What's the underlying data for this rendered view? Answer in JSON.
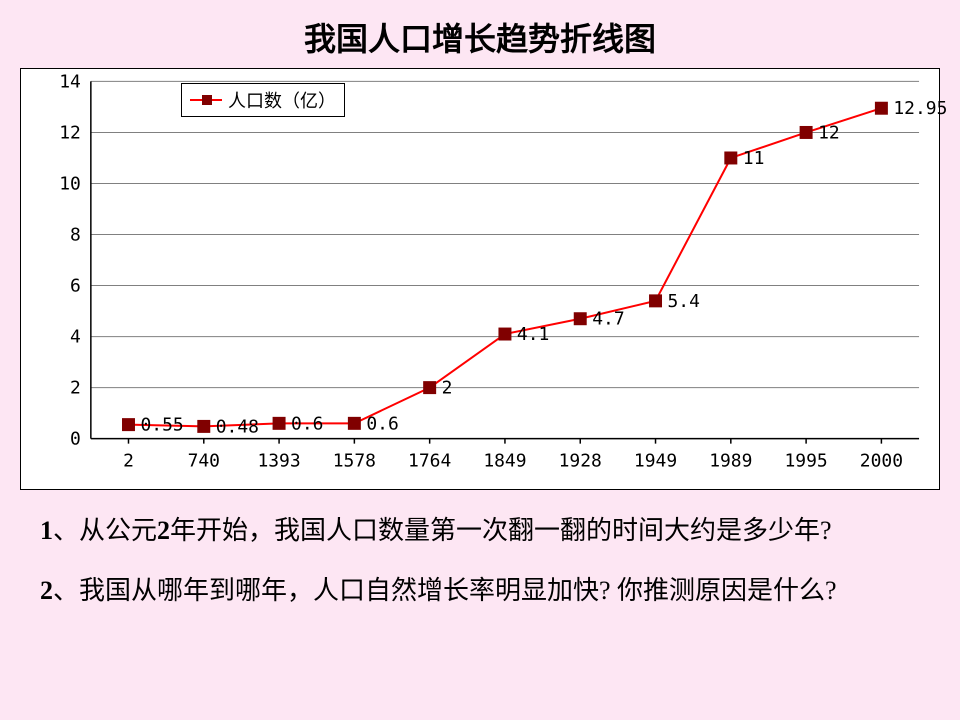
{
  "title": "我国人口增长趋势折线图",
  "chart": {
    "type": "line",
    "legend_label": "人口数（亿）",
    "x_categories": [
      "2",
      "740",
      "1393",
      "1578",
      "1764",
      "1849",
      "1928",
      "1949",
      "1989",
      "1995",
      "2000"
    ],
    "values": [
      0.55,
      0.48,
      0.6,
      0.6,
      2,
      4.1,
      4.7,
      5.4,
      11,
      12,
      12.95
    ],
    "value_labels": [
      "0.55",
      "0.48",
      "0.6",
      "0.6",
      "2",
      "4.1",
      "4.7",
      "5.4",
      "11",
      "12",
      "12.95"
    ],
    "ylim": [
      0,
      14
    ],
    "ytick_step": 2,
    "line_color": "#ff0000",
    "marker_color": "#800000",
    "marker_shape": "square",
    "marker_size": 12,
    "grid_color": "#808080",
    "background_color": "#ffffff",
    "axis_tick_fontsize": 18,
    "value_label_fontsize": 18
  },
  "questions": {
    "q1_num": "1",
    "q1_text": "、从公元",
    "q1_num2": "2",
    "q1_text2": "年开始，我国人口数量第一次翻一翻的时间大约是多少年?",
    "q2_num": "2",
    "q2_text": "、我国从哪年到哪年，人口自然增长率明显加快? 你推测原因是什么?"
  },
  "colors": {
    "slide_bg": "#fde6f3",
    "text": "#000000"
  }
}
